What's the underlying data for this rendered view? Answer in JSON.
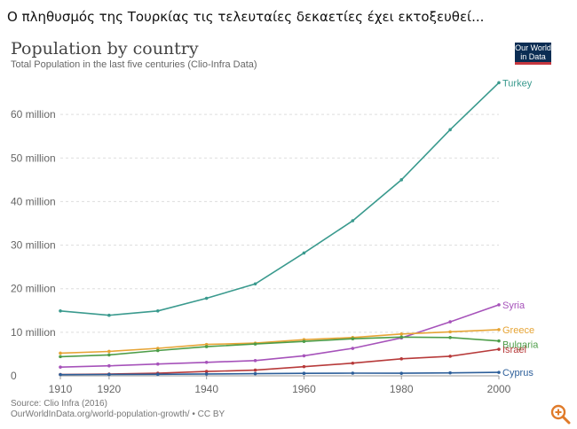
{
  "caption": "Ο πληθυσμός της Τουρκίας τις τελευταίες δεκαετίες έχει εκτοξευθεί...",
  "logo": {
    "line1": "Our World",
    "line2": "in Data"
  },
  "zoom_icon": "zoom-in-icon",
  "chart_data": {
    "type": "line",
    "title": "Population by country",
    "subtitle": "Total Population in the last five centuries (Clio-Infra Data)",
    "source": "Source: Clio Infra (2016)",
    "license": "OurWorldInData.org/world-population-growth/ • CC BY",
    "x": [
      1910,
      1920,
      1930,
      1940,
      1950,
      1960,
      1970,
      1980,
      1990,
      2000
    ],
    "xticks": [
      1910,
      1920,
      1940,
      1960,
      1980,
      2000
    ],
    "xlim": [
      1910,
      2000
    ],
    "ylim": [
      0,
      70000000
    ],
    "yticks": [
      0,
      10000000,
      20000000,
      30000000,
      40000000,
      50000000,
      60000000
    ],
    "ytick_labels": [
      "0",
      "10 million",
      "20 million",
      "30 million",
      "40 million",
      "50 million",
      "60 million"
    ],
    "grid": "horizontal",
    "legend": "line-end labels",
    "series": [
      {
        "name": "Turkey",
        "color": "#3a9a8e",
        "values": [
          14900000,
          13900000,
          14900000,
          17800000,
          21100000,
          28200000,
          35600000,
          45000000,
          56500000,
          67300000
        ]
      },
      {
        "name": "Syria",
        "color": "#a652ba",
        "values": [
          2000000,
          2300000,
          2700000,
          3100000,
          3500000,
          4600000,
          6300000,
          8700000,
          12400000,
          16300000
        ]
      },
      {
        "name": "Greece",
        "color": "#e6a435",
        "values": [
          5200000,
          5600000,
          6300000,
          7200000,
          7500000,
          8300000,
          8800000,
          9600000,
          10100000,
          10600000
        ]
      },
      {
        "name": "Bulgaria",
        "color": "#4d9d48",
        "values": [
          4400000,
          4800000,
          5800000,
          6700000,
          7300000,
          7900000,
          8500000,
          8900000,
          8800000,
          8000000
        ]
      },
      {
        "name": "Israel",
        "color": "#b73a3a",
        "values": [
          300000,
          400000,
          600000,
          1000000,
          1300000,
          2100000,
          2900000,
          3900000,
          4500000,
          6100000
        ]
      },
      {
        "name": "Cyprus",
        "color": "#2d5f9a",
        "values": [
          270000,
          310000,
          350000,
          420000,
          490000,
          570000,
          610000,
          580000,
          680000,
          790000
        ]
      }
    ]
  }
}
